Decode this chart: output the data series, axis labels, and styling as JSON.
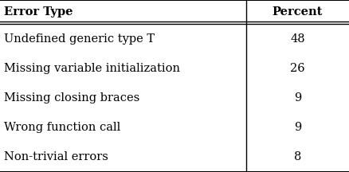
{
  "col_headers": [
    "Error Type",
    "Percent"
  ],
  "rows": [
    [
      "Undefined generic type T",
      "48"
    ],
    [
      "Missing variable initialization",
      "26"
    ],
    [
      "Missing closing braces",
      "9"
    ],
    [
      "Wrong function call",
      "9"
    ],
    [
      "Non-trivial errors",
      "8"
    ]
  ],
  "header_fontsize": 10.5,
  "body_fontsize": 10.5,
  "col_split": 0.705,
  "background_color": "#ffffff",
  "line_color": "#000000",
  "figwidth": 4.38,
  "figheight": 2.16,
  "dpi": 100
}
